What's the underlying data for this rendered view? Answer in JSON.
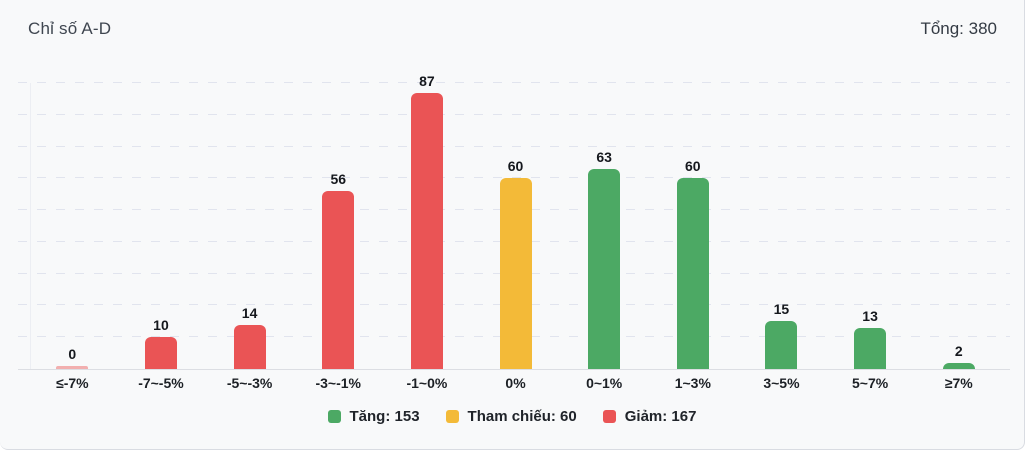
{
  "panel": {
    "title": "Chỉ số A-D",
    "total_label": "Tổng: 380"
  },
  "chart_data": {
    "type": "bar",
    "title": "Chỉ số A-D",
    "total": 380,
    "categories": [
      "≤-7%",
      "-7~-5%",
      "-5~-3%",
      "-3~-1%",
      "-1~0%",
      "0%",
      "0~1%",
      "1~3%",
      "3~5%",
      "5~7%",
      "≥7%"
    ],
    "values": [
      0,
      10,
      14,
      56,
      87,
      60,
      63,
      60,
      15,
      13,
      2
    ],
    "groups": [
      "down",
      "down",
      "down",
      "down",
      "down",
      "ref",
      "up",
      "up",
      "up",
      "up",
      "up"
    ],
    "colors": {
      "up": "#4ca964",
      "ref": "#f3ba38",
      "down": "#ea5455"
    },
    "xlabel": "",
    "ylabel": "",
    "ylim": [
      0,
      90
    ],
    "grid": "horizontal dashed lines every 10 units, no y tick labels",
    "legend_position": "bottom",
    "legend": [
      {
        "label": "Tăng: 153",
        "group": "up",
        "color": "#4ca964"
      },
      {
        "label": "Tham chiếu: 60",
        "group": "ref",
        "color": "#f3ba38"
      },
      {
        "label": "Giảm: 167",
        "group": "down",
        "color": "#ea5455"
      }
    ]
  }
}
